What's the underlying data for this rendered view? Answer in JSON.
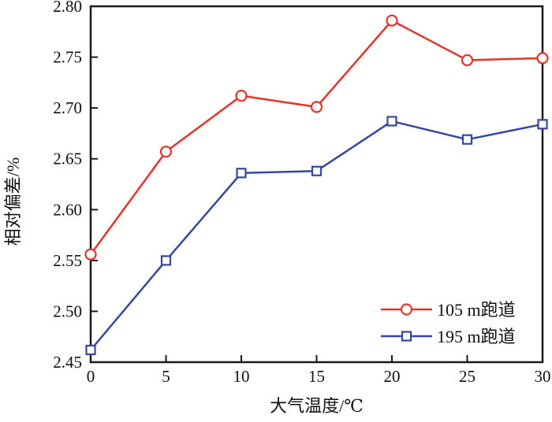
{
  "chart_data": {
    "type": "line",
    "title": "",
    "xlabel": "大气温度/℃",
    "ylabel": "相对偏差/%",
    "x": [
      0,
      5,
      10,
      15,
      20,
      25,
      30
    ],
    "xlim": [
      0,
      30
    ],
    "ylim": [
      2.45,
      2.8
    ],
    "x_tick_step": 5,
    "y_tick_step": 0.05,
    "y_tick_decimals": 2,
    "grid": false,
    "legend_position": "inside-lower-right",
    "series": [
      {
        "name": "105 m跑道",
        "color": "#e5332a",
        "marker": "circle",
        "values": [
          2.556,
          2.657,
          2.712,
          2.701,
          2.786,
          2.747,
          2.749
        ]
      },
      {
        "name": "195 m跑道",
        "color": "#35489e",
        "marker": "square",
        "values": [
          2.462,
          2.55,
          2.636,
          2.638,
          2.687,
          2.669,
          2.684
        ]
      }
    ],
    "axis_color": "#1a1a1a",
    "text_color": "#111111"
  }
}
